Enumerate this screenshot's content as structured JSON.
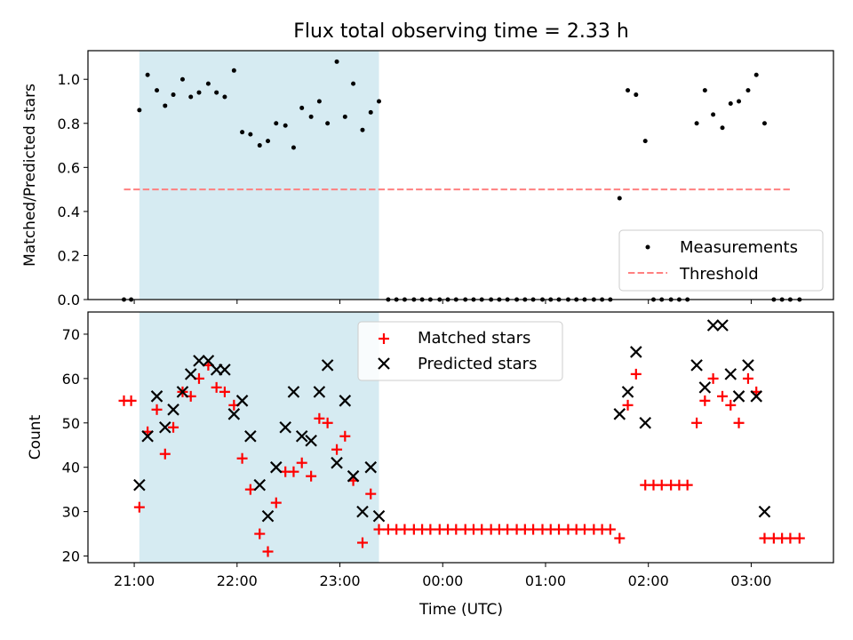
{
  "chart_data": [
    {
      "type": "scatter",
      "title": "Flux total observing time = 2.33 h",
      "xlabel": "",
      "ylabel": "Matched/Predicted stars",
      "x_unit": "hours since 21:00 UTC",
      "xlim": [
        -0.45,
        6.8
      ],
      "ylim": [
        0,
        1.13
      ],
      "yticks": [
        "0.0",
        "0.2",
        "0.4",
        "0.6",
        "0.8",
        "1.0"
      ],
      "shaded_span": [
        0.05,
        2.38
      ],
      "shaded_color": "#add8e6",
      "legend_position": "lower right",
      "series": [
        {
          "name": "Measurements",
          "marker": "dot",
          "color": "#000000",
          "x": [
            -0.1,
            -0.03,
            0.05,
            0.13,
            0.22,
            0.3,
            0.38,
            0.47,
            0.55,
            0.63,
            0.72,
            0.8,
            0.88,
            0.97,
            1.05,
            1.13,
            1.22,
            1.3,
            1.38,
            1.47,
            1.55,
            1.63,
            1.72,
            1.8,
            1.88,
            1.97,
            2.05,
            2.13,
            2.22,
            2.3,
            2.38,
            2.47,
            2.55,
            2.63,
            2.72,
            2.8,
            2.88,
            2.97,
            3.05,
            3.13,
            3.22,
            3.3,
            3.38,
            3.47,
            3.55,
            3.63,
            3.72,
            3.8,
            3.88,
            3.97,
            4.05,
            4.13,
            4.22,
            4.3,
            4.38,
            4.47,
            4.55,
            4.63,
            4.72,
            4.8,
            4.88,
            4.97,
            5.05,
            5.13,
            5.22,
            5.3,
            5.38,
            5.47,
            5.55,
            5.63,
            5.72,
            5.8,
            5.88,
            5.97,
            6.05,
            6.13,
            6.22,
            6.3,
            6.38,
            6.47
          ],
          "y": [
            0.0,
            0.0,
            0.86,
            1.02,
            0.95,
            0.88,
            0.93,
            1.0,
            0.92,
            0.94,
            0.98,
            0.94,
            0.92,
            1.04,
            0.76,
            0.75,
            0.7,
            0.72,
            0.8,
            0.79,
            0.69,
            0.87,
            0.83,
            0.9,
            0.8,
            1.08,
            0.83,
            0.98,
            0.77,
            0.85,
            0.9,
            0.0,
            0.0,
            0.0,
            0.0,
            0.0,
            0.0,
            0.0,
            0.0,
            0.0,
            0.0,
            0.0,
            0.0,
            0.0,
            0.0,
            0.0,
            0.0,
            0.0,
            0.0,
            0.0,
            0.0,
            0.0,
            0.0,
            0.0,
            0.0,
            0.0,
            0.0,
            0.0,
            0.46,
            0.95,
            0.93,
            0.72,
            0.0,
            0.0,
            0.0,
            0.0,
            0.0,
            0.8,
            0.95,
            0.84,
            0.78,
            0.89,
            0.9,
            0.95,
            1.02,
            0.8,
            0.0,
            0.0,
            0.0,
            0.0
          ]
        },
        {
          "name": "Threshold",
          "style": "dashed",
          "color": "#ff8080",
          "x": [
            -0.1,
            6.4
          ],
          "y": [
            0.5,
            0.5
          ]
        }
      ]
    },
    {
      "type": "scatter",
      "title": "",
      "xlabel": "Time (UTC)",
      "ylabel": "Count",
      "x_unit": "hours since 21:00 UTC",
      "xlim": [
        -0.45,
        6.8
      ],
      "ylim": [
        18.5,
        75
      ],
      "yticks": [
        "20",
        "30",
        "40",
        "50",
        "60",
        "70"
      ],
      "xticks": [
        {
          "label": "21:00",
          "value": 0
        },
        {
          "label": "22:00",
          "value": 1
        },
        {
          "label": "23:00",
          "value": 2
        },
        {
          "label": "00:00",
          "value": 3
        },
        {
          "label": "01:00",
          "value": 4
        },
        {
          "label": "02:00",
          "value": 5
        },
        {
          "label": "03:00",
          "value": 6
        }
      ],
      "shaded_span": [
        0.05,
        2.38
      ],
      "shaded_color": "#add8e6",
      "legend_position": "top center",
      "series": [
        {
          "name": "Matched stars",
          "marker": "plus",
          "color": "#ff0000",
          "x": [
            -0.1,
            -0.03,
            0.05,
            0.13,
            0.22,
            0.3,
            0.38,
            0.47,
            0.55,
            0.63,
            0.72,
            0.8,
            0.88,
            0.97,
            1.05,
            1.13,
            1.22,
            1.3,
            1.38,
            1.47,
            1.55,
            1.63,
            1.72,
            1.8,
            1.88,
            1.97,
            2.05,
            2.13,
            2.22,
            2.3,
            2.38,
            2.47,
            2.55,
            2.63,
            2.72,
            2.8,
            2.88,
            2.97,
            3.05,
            3.13,
            3.22,
            3.3,
            3.38,
            3.47,
            3.55,
            3.63,
            3.72,
            3.8,
            3.88,
            3.97,
            4.05,
            4.13,
            4.22,
            4.3,
            4.38,
            4.47,
            4.55,
            4.63,
            4.72,
            4.8,
            4.88,
            4.97,
            5.05,
            5.13,
            5.22,
            5.3,
            5.38,
            5.47,
            5.55,
            5.63,
            5.72,
            5.8,
            5.88,
            5.97,
            6.05,
            6.13,
            6.22,
            6.3,
            6.38,
            6.47
          ],
          "y": [
            55,
            55,
            31,
            48,
            53,
            43,
            49,
            57,
            56,
            60,
            63,
            58,
            57,
            54,
            42,
            35,
            25,
            21,
            32,
            39,
            39,
            41,
            38,
            51,
            50,
            44,
            47,
            37,
            23,
            34,
            26,
            26,
            26,
            26,
            26,
            26,
            26,
            26,
            26,
            26,
            26,
            26,
            26,
            26,
            26,
            26,
            26,
            26,
            26,
            26,
            26,
            26,
            26,
            26,
            26,
            26,
            26,
            26,
            24,
            54,
            61,
            36,
            36,
            36,
            36,
            36,
            36,
            50,
            55,
            60,
            56,
            54,
            50,
            60,
            57,
            24,
            24,
            24,
            24,
            24
          ]
        },
        {
          "name": "Predicted stars",
          "marker": "x",
          "color": "#000000",
          "x": [
            0.05,
            0.13,
            0.22,
            0.3,
            0.38,
            0.47,
            0.55,
            0.63,
            0.72,
            0.8,
            0.88,
            0.97,
            1.05,
            1.13,
            1.22,
            1.3,
            1.38,
            1.47,
            1.55,
            1.63,
            1.72,
            1.8,
            1.88,
            1.97,
            2.05,
            2.13,
            2.22,
            2.3,
            2.38,
            4.72,
            4.8,
            4.88,
            4.97,
            5.47,
            5.55,
            5.63,
            5.72,
            5.8,
            5.88,
            5.97,
            6.05,
            6.13
          ],
          "y": [
            36,
            47,
            56,
            49,
            53,
            57,
            61,
            64,
            64,
            62,
            62,
            52,
            55,
            47,
            36,
            29,
            40,
            49,
            57,
            47,
            46,
            57,
            63,
            41,
            55,
            38,
            30,
            40,
            29,
            52,
            57,
            66,
            50,
            63,
            58,
            72,
            72,
            61,
            56,
            63,
            56,
            30
          ]
        }
      ]
    }
  ]
}
